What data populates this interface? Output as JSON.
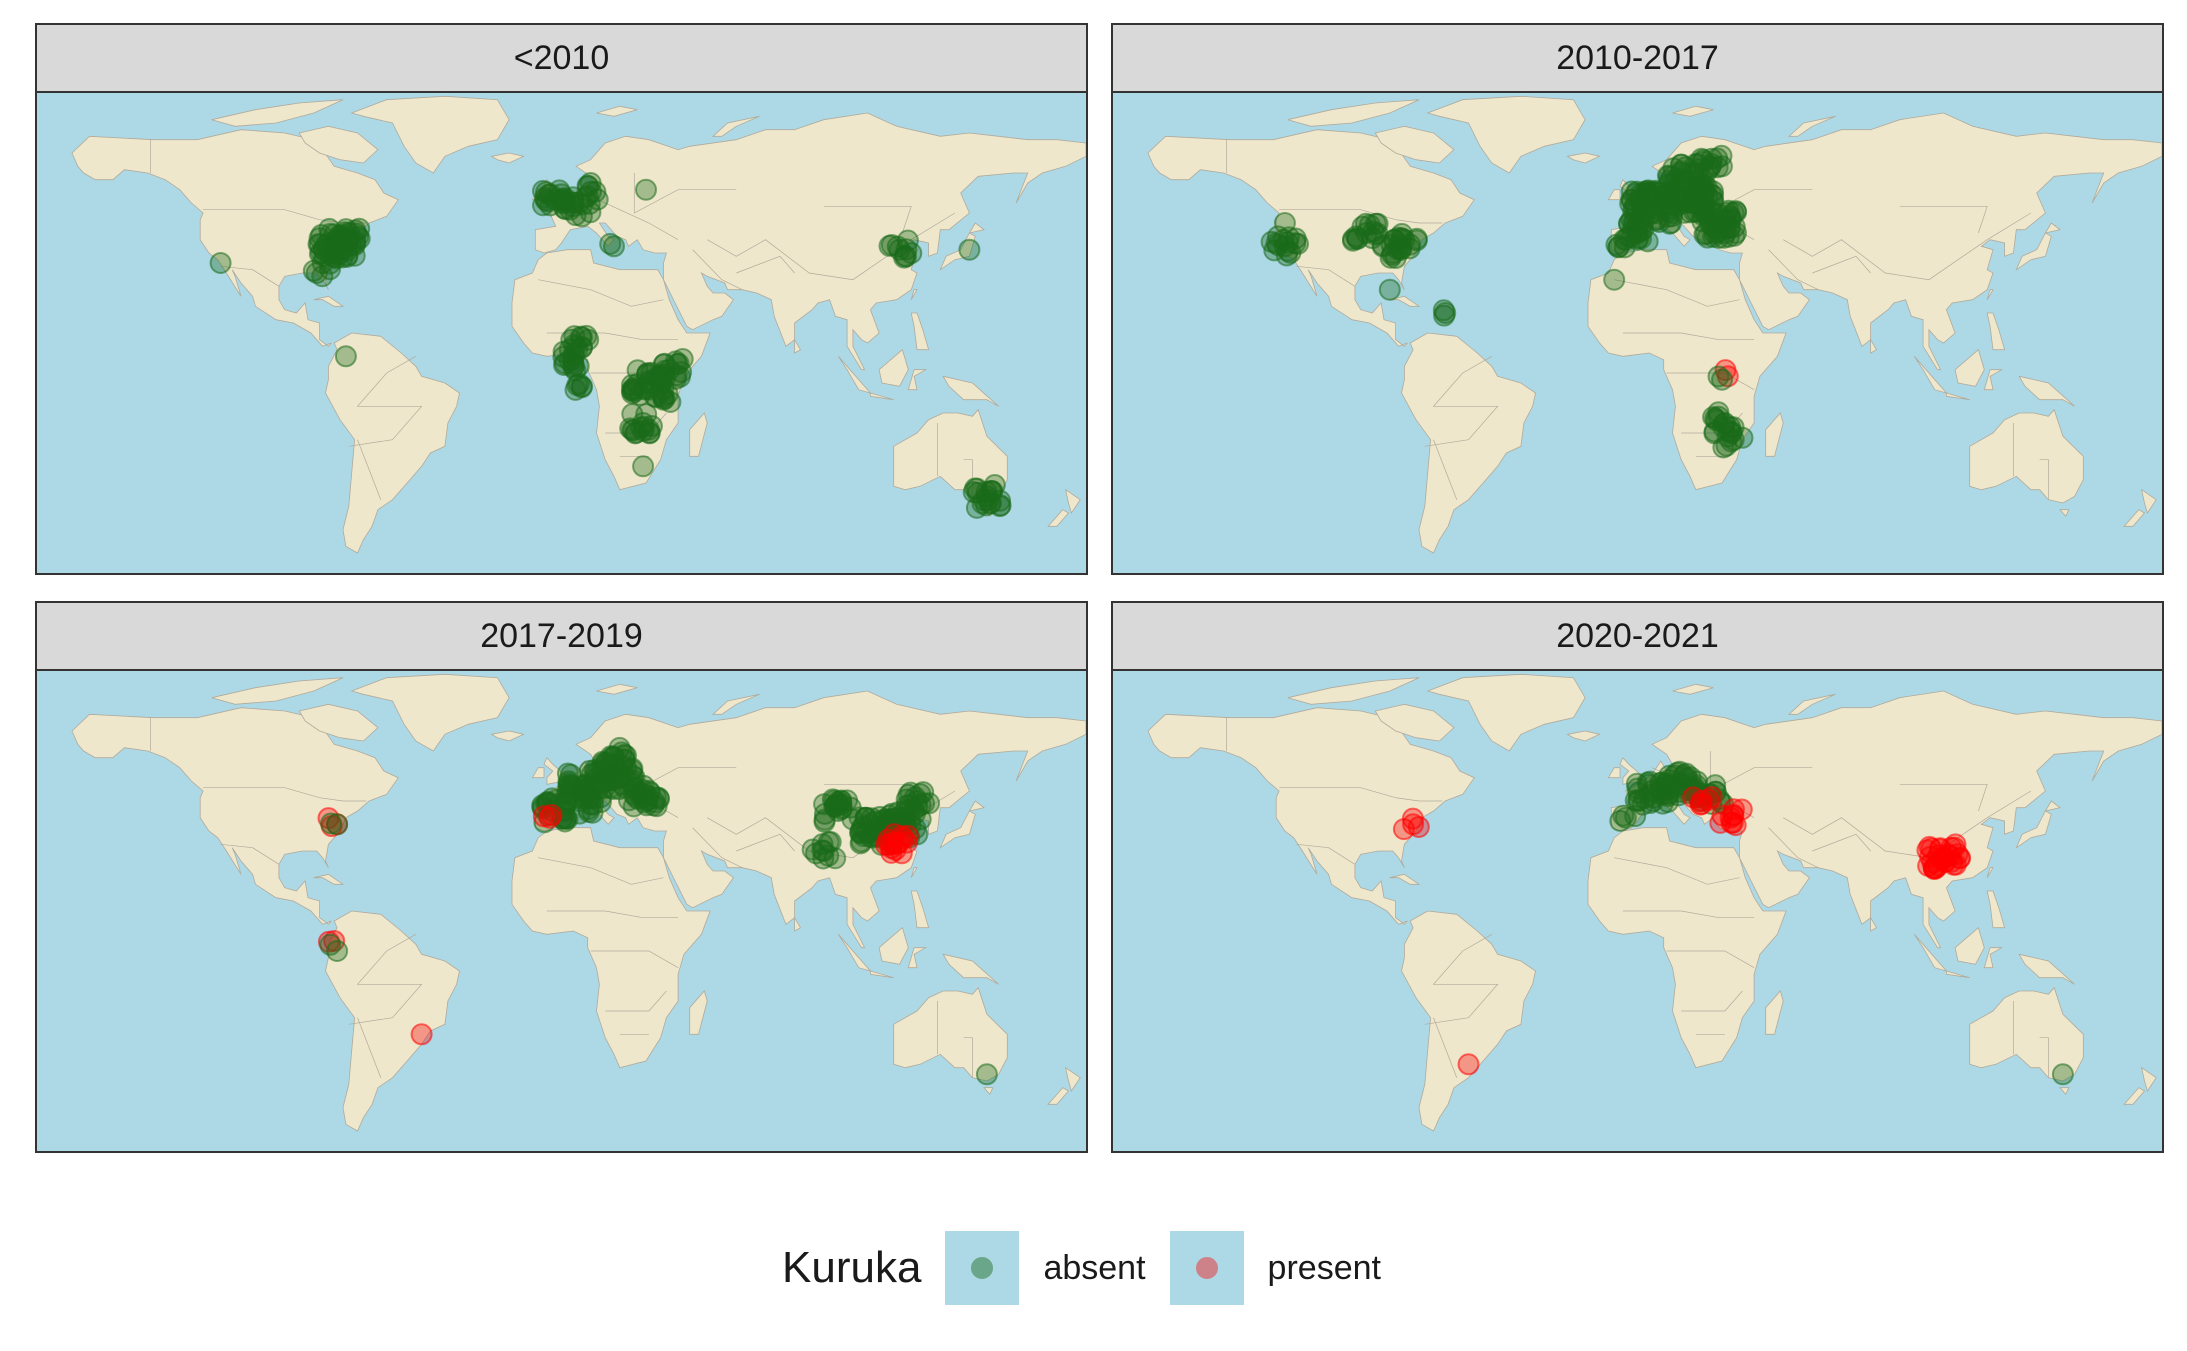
{
  "colors": {
    "ocean": "#add8e6",
    "land": "#efe7cc",
    "border": "#b0aa9a",
    "absent": "#1a6b1a",
    "present": "#ff0000",
    "strip": "#d9d9d9"
  },
  "legend": {
    "title": "Kuruka",
    "items": [
      {
        "key": "absent",
        "label": "absent"
      },
      {
        "key": "present",
        "label": "present"
      }
    ]
  },
  "chart_data": {
    "type": "scatter",
    "projection": "equirectangular",
    "xlim": [
      -180,
      180
    ],
    "ylim": [
      -60,
      84
    ],
    "facets": [
      {
        "label": "<2010",
        "points": [
          {
            "lon": -77,
            "lat": 39,
            "c": 40,
            "s": "absent"
          },
          {
            "lon": -73,
            "lat": 40,
            "c": 20,
            "s": "absent"
          },
          {
            "lon": -80,
            "lat": 36,
            "c": 6,
            "s": "absent"
          },
          {
            "lon": -82,
            "lat": 33,
            "c": 4,
            "s": "absent"
          },
          {
            "lon": -84,
            "lat": 30,
            "c": 3,
            "s": "absent"
          },
          {
            "lon": -117,
            "lat": 33,
            "c": 1,
            "s": "absent"
          },
          {
            "lon": -74,
            "lat": 5,
            "c": 1,
            "s": "absent"
          },
          {
            "lon": -2,
            "lat": 52,
            "c": 15,
            "s": "absent"
          },
          {
            "lon": 4,
            "lat": 50,
            "c": 10,
            "s": "absent"
          },
          {
            "lon": 9,
            "lat": 53,
            "c": 8,
            "s": "absent"
          },
          {
            "lon": 10,
            "lat": 57,
            "c": 3,
            "s": "absent"
          },
          {
            "lon": 7,
            "lat": 47,
            "c": 3,
            "s": "absent"
          },
          {
            "lon": 29,
            "lat": 55,
            "c": 1,
            "s": "absent"
          },
          {
            "lon": 18,
            "lat": 38,
            "c": 2,
            "s": "absent"
          },
          {
            "lon": 5,
            "lat": 8,
            "c": 15,
            "s": "absent"
          },
          {
            "lon": 4,
            "lat": 3,
            "c": 10,
            "s": "absent"
          },
          {
            "lon": 7,
            "lat": -4,
            "c": 5,
            "s": "absent"
          },
          {
            "lon": 30,
            "lat": -3,
            "c": 30,
            "s": "absent"
          },
          {
            "lon": 37,
            "lat": 1,
            "c": 15,
            "s": "absent"
          },
          {
            "lon": 35,
            "lat": -8,
            "c": 6,
            "s": "absent"
          },
          {
            "lon": 28,
            "lat": -15,
            "c": 15,
            "s": "absent"
          },
          {
            "lon": 28,
            "lat": -28,
            "c": 1,
            "s": "absent"
          },
          {
            "lon": 116,
            "lat": 37,
            "c": 10,
            "s": "absent"
          },
          {
            "lon": 140,
            "lat": 37,
            "c": 1,
            "s": "absent"
          },
          {
            "lon": 146,
            "lat": -37,
            "c": 20,
            "s": "absent"
          }
        ]
      },
      {
        "label": "2010-2017",
        "points": [
          {
            "lon": -121,
            "lat": 38,
            "c": 15,
            "s": "absent"
          },
          {
            "lon": -121,
            "lat": 45,
            "c": 1,
            "s": "absent"
          },
          {
            "lon": -93,
            "lat": 42,
            "c": 15,
            "s": "absent"
          },
          {
            "lon": -80,
            "lat": 40,
            "c": 15,
            "s": "absent"
          },
          {
            "lon": -84,
            "lat": 36,
            "c": 8,
            "s": "absent"
          },
          {
            "lon": -85,
            "lat": 25,
            "c": 1,
            "s": "absent"
          },
          {
            "lon": -66,
            "lat": 18,
            "c": 3,
            "s": "absent"
          },
          {
            "lon": -8,
            "lat": 28,
            "c": 1,
            "s": "absent"
          },
          {
            "lon": 5,
            "lat": 50,
            "c": 60,
            "s": "absent"
          },
          {
            "lon": 20,
            "lat": 52,
            "c": 50,
            "s": "absent"
          },
          {
            "lon": 28,
            "lat": 45,
            "c": 40,
            "s": "absent"
          },
          {
            "lon": 15,
            "lat": 60,
            "c": 20,
            "s": "absent"
          },
          {
            "lon": 25,
            "lat": 62,
            "c": 15,
            "s": "absent"
          },
          {
            "lon": 0,
            "lat": 42,
            "c": 15,
            "s": "absent"
          },
          {
            "lon": -4,
            "lat": 40,
            "c": 8,
            "s": "absent"
          },
          {
            "lon": 31,
            "lat": -1,
            "c": 2,
            "s": "present"
          },
          {
            "lon": 29,
            "lat": -2,
            "c": 2,
            "s": "absent"
          },
          {
            "lon": 30,
            "lat": -15,
            "c": 15,
            "s": "absent"
          },
          {
            "lon": 33,
            "lat": -20,
            "c": 6,
            "s": "absent"
          }
        ]
      },
      {
        "label": "2017-2019",
        "points": [
          {
            "lon": -77,
            "lat": 38,
            "c": 3,
            "s": "present"
          },
          {
            "lon": -77,
            "lat": 38,
            "c": 2,
            "s": "absent"
          },
          {
            "lon": -78,
            "lat": 3,
            "c": 2,
            "s": "present"
          },
          {
            "lon": -77,
            "lat": 0,
            "c": 2,
            "s": "absent"
          },
          {
            "lon": -48,
            "lat": -25,
            "c": 1,
            "s": "present"
          },
          {
            "lon": -3,
            "lat": 42,
            "c": 25,
            "s": "absent"
          },
          {
            "lon": -4,
            "lat": 40,
            "c": 3,
            "s": "present"
          },
          {
            "lon": 8,
            "lat": 50,
            "c": 40,
            "s": "absent"
          },
          {
            "lon": 20,
            "lat": 52,
            "c": 30,
            "s": "absent"
          },
          {
            "lon": 28,
            "lat": 46,
            "c": 25,
            "s": "absent"
          },
          {
            "lon": 18,
            "lat": 58,
            "c": 15,
            "s": "absent"
          },
          {
            "lon": 10,
            "lat": 44,
            "c": 10,
            "s": "absent"
          },
          {
            "lon": 95,
            "lat": 42,
            "c": 20,
            "s": "absent"
          },
          {
            "lon": 108,
            "lat": 36,
            "c": 40,
            "s": "absent"
          },
          {
            "lon": 118,
            "lat": 38,
            "c": 30,
            "s": "absent"
          },
          {
            "lon": 122,
            "lat": 45,
            "c": 15,
            "s": "absent"
          },
          {
            "lon": 115,
            "lat": 32,
            "c": 15,
            "s": "present"
          },
          {
            "lon": 90,
            "lat": 30,
            "c": 10,
            "s": "absent"
          },
          {
            "lon": 146,
            "lat": -37,
            "c": 1,
            "s": "absent"
          }
        ]
      },
      {
        "label": "2020-2021",
        "points": [
          {
            "lon": -77,
            "lat": 38,
            "c": 4,
            "s": "present"
          },
          {
            "lon": -58,
            "lat": -34,
            "c": 1,
            "s": "present"
          },
          {
            "lon": 5,
            "lat": 48,
            "c": 30,
            "s": "absent"
          },
          {
            "lon": 15,
            "lat": 50,
            "c": 25,
            "s": "absent"
          },
          {
            "lon": 25,
            "lat": 47,
            "c": 15,
            "s": "absent"
          },
          {
            "lon": 22,
            "lat": 45,
            "c": 6,
            "s": "present"
          },
          {
            "lon": 32,
            "lat": 40,
            "c": 10,
            "s": "present"
          },
          {
            "lon": -4,
            "lat": 40,
            "c": 4,
            "s": "absent"
          },
          {
            "lon": 105,
            "lat": 28,
            "c": 30,
            "s": "present"
          },
          {
            "lon": 146,
            "lat": -37,
            "c": 1,
            "s": "absent"
          }
        ]
      }
    ]
  }
}
